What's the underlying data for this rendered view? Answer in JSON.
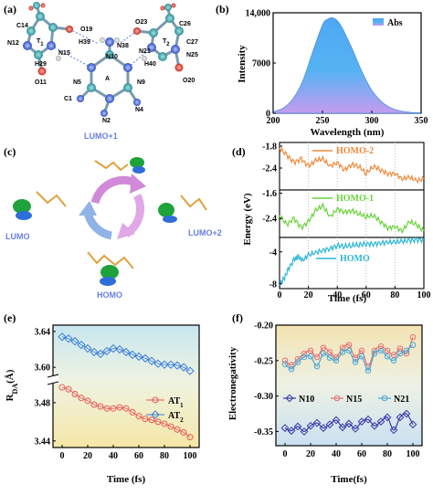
{
  "panels": {
    "a": "(a)",
    "b": "(b)",
    "c": "(c)",
    "d": "(d)",
    "e": "(e)",
    "f": "(f)"
  },
  "molecule": {
    "atoms": [
      "C14",
      "O19",
      "N12",
      "T1",
      "N15",
      "H39",
      "H29",
      "O11",
      "O23",
      "C26",
      "N38",
      "T2",
      "C27",
      "N10",
      "N21",
      "N25",
      "H40",
      "O20",
      "N5",
      "A",
      "N9",
      "C1",
      "N2",
      "N4"
    ],
    "subscripts": {
      "T1": "1",
      "T2": "2"
    },
    "colors": {
      "carbon": "#3fa8ad",
      "nitrogen": "#4a6ee0",
      "oxygen": "#e0453a",
      "hydrogen": "#e8e8e8"
    }
  },
  "orbitals": {
    "labels": [
      "LUMO+1",
      "LUMO",
      "LUMO+2",
      "HOMO"
    ],
    "lobe_color": "#1ea23a",
    "cycle_colors": [
      "#d08ad8",
      "#8fb3e6"
    ]
  },
  "chart_data": [
    {
      "id": "b",
      "type": "area",
      "title": "",
      "xlabel": "Wavelength (nm)",
      "ylabel": "Intensity",
      "xlim": [
        200,
        350
      ],
      "ylim": [
        0,
        14000
      ],
      "xticks": [
        200,
        250,
        300,
        350
      ],
      "yticks": [
        0,
        7000,
        14000
      ],
      "ytick_labels": [
        "0",
        "7000",
        "14,000"
      ],
      "legend": "Abs",
      "legend_position": "top-right",
      "series": [
        {
          "name": "Abs",
          "x": [
            200,
            210,
            220,
            230,
            240,
            250,
            255,
            260,
            265,
            270,
            280,
            290,
            300,
            310,
            320,
            330,
            340,
            350
          ],
          "values": [
            200,
            700,
            2000,
            4500,
            8500,
            12300,
            13100,
            13300,
            12900,
            11900,
            9000,
            5800,
            3200,
            1600,
            700,
            300,
            120,
            50
          ]
        }
      ],
      "gradient": [
        "#6fa3ff",
        "#3fb8f0",
        "#c79cf2"
      ]
    },
    {
      "id": "d",
      "type": "line",
      "xlabel": "Time (fs)",
      "ylabel": "Energy (eV)",
      "xlim": [
        0,
        100
      ],
      "xticks": [
        0,
        20,
        40,
        60,
        80,
        100
      ],
      "grid": "vertical-dotted",
      "subplots": [
        {
          "name": "HOMO-2",
          "color": "#f0883a",
          "ylim": [
            -3.0,
            -1.7
          ],
          "yticks": [
            -1.8,
            -2.4
          ],
          "x": [
            0,
            5,
            10,
            15,
            20,
            25,
            30,
            35,
            40,
            45,
            50,
            55,
            60,
            65,
            70,
            75,
            80,
            85,
            90,
            95,
            100
          ],
          "values": [
            -1.85,
            -2.05,
            -2.25,
            -2.15,
            -2.35,
            -2.2,
            -2.15,
            -2.35,
            -2.25,
            -2.45,
            -2.3,
            -2.35,
            -2.55,
            -2.35,
            -2.45,
            -2.55,
            -2.55,
            -2.7,
            -2.65,
            -2.75,
            -2.7
          ]
        },
        {
          "name": "HOMO-1",
          "color": "#6ad33a",
          "ylim": [
            -3.0,
            -1.5
          ],
          "yticks": [
            -1.6,
            -2.4
          ],
          "x": [
            0,
            5,
            10,
            15,
            20,
            25,
            30,
            35,
            40,
            45,
            50,
            55,
            60,
            65,
            70,
            75,
            80,
            85,
            90,
            95,
            100
          ],
          "values": [
            -2.3,
            -2.6,
            -2.4,
            -2.7,
            -2.5,
            -2.15,
            -2.0,
            -2.35,
            -2.1,
            -2.2,
            -2.15,
            -2.25,
            -2.35,
            -2.3,
            -2.5,
            -2.7,
            -2.65,
            -2.8,
            -2.5,
            -2.6,
            -2.8
          ]
        },
        {
          "name": "HOMO",
          "color": "#2bb6d6",
          "ylim": [
            -8.6,
            -2.2
          ],
          "yticks": [
            -4,
            -8
          ],
          "x": [
            0,
            3,
            6,
            10,
            13,
            16,
            20,
            25,
            30,
            35,
            40,
            45,
            50,
            55,
            60,
            65,
            70,
            75,
            80,
            85,
            90,
            95,
            100
          ],
          "values": [
            -8.1,
            -7.4,
            -6.2,
            -5.0,
            -4.6,
            -5.1,
            -4.4,
            -4.1,
            -3.8,
            -3.6,
            -3.2,
            -3.3,
            -3.2,
            -3.1,
            -3.0,
            -3.0,
            -2.9,
            -2.8,
            -2.8,
            -2.7,
            -2.6,
            -2.5,
            -2.5
          ]
        }
      ]
    },
    {
      "id": "e",
      "type": "scatter",
      "xlabel": "Time (fs)",
      "ylabel": "RDA(Å)",
      "xlim": [
        0,
        100
      ],
      "xticks": [
        0,
        20,
        40,
        60,
        80,
        100
      ],
      "yticks": [
        3.44,
        3.48,
        3.6,
        3.64
      ],
      "axis_break": true,
      "legend_position": "center-right",
      "series": [
        {
          "name": "AT1",
          "color": "#e75858",
          "x": [
            0,
            5,
            10,
            15,
            20,
            25,
            30,
            35,
            40,
            45,
            50,
            55,
            60,
            65,
            70,
            75,
            80,
            85,
            90,
            95,
            100
          ],
          "values": [
            3.496,
            3.494,
            3.489,
            3.485,
            3.482,
            3.478,
            3.476,
            3.474,
            3.474,
            3.475,
            3.474,
            3.47,
            3.466,
            3.463,
            3.462,
            3.46,
            3.458,
            3.455,
            3.452,
            3.449,
            3.444
          ]
        },
        {
          "name": "AT2",
          "color": "#3a7ed8",
          "x": [
            0,
            5,
            10,
            15,
            20,
            25,
            30,
            35,
            40,
            45,
            50,
            55,
            60,
            65,
            70,
            75,
            80,
            85,
            90,
            95,
            100
          ],
          "values": [
            3.634,
            3.632,
            3.629,
            3.625,
            3.621,
            3.617,
            3.615,
            3.618,
            3.621,
            3.62,
            3.617,
            3.614,
            3.612,
            3.61,
            3.607,
            3.604,
            3.603,
            3.603,
            3.602,
            3.6,
            3.596
          ]
        }
      ]
    },
    {
      "id": "f",
      "type": "line",
      "xlabel": "Time(fs)",
      "ylabel": "Electronegativity",
      "xlim": [
        0,
        100
      ],
      "ylim": [
        -0.37,
        -0.2
      ],
      "xticks": [
        0,
        20,
        40,
        60,
        80,
        100
      ],
      "yticks": [
        -0.2,
        -0.25,
        -0.3,
        -0.35
      ],
      "legend_position": "center",
      "series": [
        {
          "name": "N10",
          "color": "#3a3aa8",
          "x": [
            0,
            5,
            10,
            15,
            20,
            25,
            30,
            35,
            40,
            45,
            50,
            55,
            60,
            65,
            70,
            75,
            80,
            85,
            90,
            95,
            100
          ],
          "values": [
            -0.345,
            -0.349,
            -0.343,
            -0.35,
            -0.342,
            -0.338,
            -0.345,
            -0.34,
            -0.334,
            -0.344,
            -0.339,
            -0.346,
            -0.336,
            -0.333,
            -0.342,
            -0.336,
            -0.33,
            -0.348,
            -0.33,
            -0.325,
            -0.34
          ]
        },
        {
          "name": "N15",
          "color": "#e87070",
          "x": [
            0,
            5,
            10,
            15,
            20,
            25,
            30,
            35,
            40,
            45,
            50,
            55,
            60,
            65,
            70,
            75,
            80,
            85,
            90,
            95,
            100
          ],
          "values": [
            -0.25,
            -0.256,
            -0.248,
            -0.24,
            -0.236,
            -0.245,
            -0.232,
            -0.238,
            -0.245,
            -0.232,
            -0.228,
            -0.246,
            -0.236,
            -0.258,
            -0.236,
            -0.23,
            -0.236,
            -0.242,
            -0.233,
            -0.24,
            -0.217
          ]
        },
        {
          "name": "N21",
          "color": "#4aa8d8",
          "x": [
            0,
            5,
            10,
            15,
            20,
            25,
            30,
            35,
            40,
            45,
            50,
            55,
            60,
            65,
            70,
            75,
            80,
            85,
            90,
            95,
            100
          ],
          "values": [
            -0.255,
            -0.262,
            -0.252,
            -0.245,
            -0.244,
            -0.258,
            -0.24,
            -0.246,
            -0.25,
            -0.238,
            -0.236,
            -0.252,
            -0.244,
            -0.264,
            -0.24,
            -0.236,
            -0.244,
            -0.25,
            -0.24,
            -0.236,
            -0.228
          ]
        }
      ]
    }
  ]
}
